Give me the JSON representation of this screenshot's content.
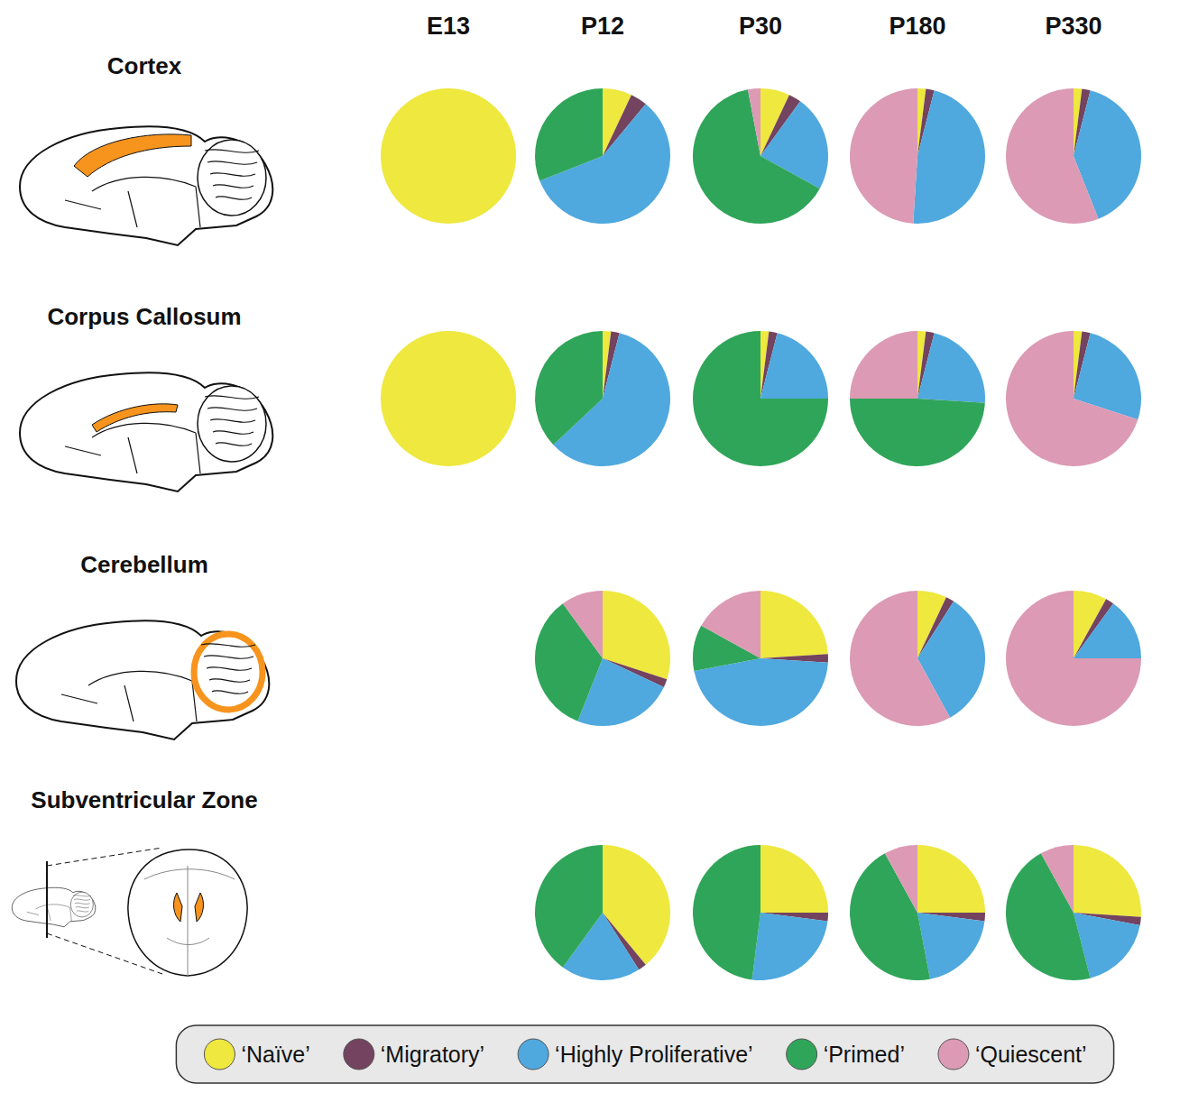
{
  "chart_data": {
    "type": "pie",
    "columns": [
      "E13",
      "P12",
      "P30",
      "P180",
      "P330"
    ],
    "categories": [
      "‘Naïve’",
      "‘Migratory’",
      "‘Highly Proliferative’",
      "‘Primed’",
      "‘Quiescent’"
    ],
    "colors": [
      "#eee83f",
      "#73435f",
      "#4fa8de",
      "#2fa55a",
      "#dc9ab4"
    ],
    "legend": "bottom",
    "panels": [
      {
        "name": "Cortex",
        "values": [
          [
            100,
            0,
            0,
            0,
            0
          ],
          [
            7,
            4,
            58,
            31,
            0
          ],
          [
            7,
            3,
            23,
            64,
            3
          ],
          [
            2,
            2,
            47,
            0,
            49
          ],
          [
            2,
            2,
            40,
            0,
            56
          ]
        ]
      },
      {
        "name": "Corpus Callosum",
        "values": [
          [
            100,
            0,
            0,
            0,
            0
          ],
          [
            2,
            2,
            59,
            37,
            0
          ],
          [
            2,
            2,
            21,
            75,
            0
          ],
          [
            2,
            2,
            22,
            49,
            25
          ],
          [
            2,
            2,
            26,
            0,
            70
          ]
        ]
      },
      {
        "name": "Cerebellum",
        "values": [
          null,
          [
            30,
            2,
            24,
            34,
            10
          ],
          [
            24,
            2,
            46,
            11,
            17
          ],
          [
            7,
            2,
            33,
            0,
            58
          ],
          [
            8,
            2,
            15,
            0,
            75
          ]
        ]
      },
      {
        "name": "Subventricular Zone",
        "values": [
          null,
          [
            39,
            2,
            19,
            40,
            0
          ],
          [
            25,
            2,
            25,
            48,
            0
          ],
          [
            25,
            2,
            20,
            45,
            8
          ],
          [
            26,
            2,
            18,
            46,
            8
          ]
        ]
      }
    ]
  }
}
